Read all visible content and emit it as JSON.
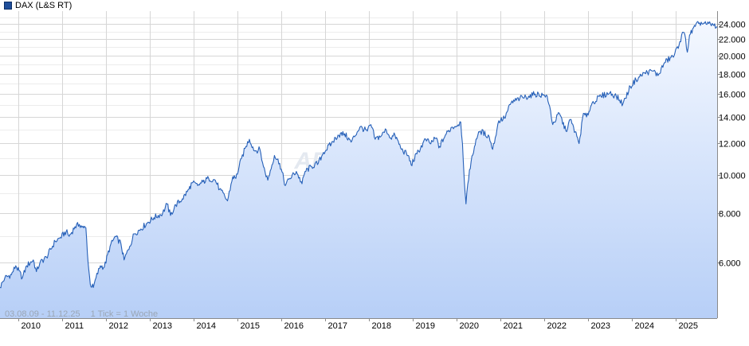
{
  "legend": {
    "label": "DAX (L&S RT)",
    "color": "#1f4e9a"
  },
  "footnote": {
    "range": "03.08.09 - 11.12.25",
    "tick": "1 Tick = 1 Woche"
  },
  "watermark": "ARIVA.DE",
  "chart_data": {
    "type": "area",
    "title": "",
    "xlabel": "",
    "ylabel": "",
    "yscale": "log",
    "grid": true,
    "legend_position": "top-left",
    "y_axis_side": "right",
    "xlim": [
      2009.59,
      2025.95
    ],
    "ylim": [
      4350,
      25900
    ],
    "line_color": "#2660b8",
    "fill_top": "#f4f8ff",
    "fill_bottom": "#b7cff7",
    "x_ticks": [
      {
        "label": "2010",
        "x": 2010.0
      },
      {
        "label": "2011",
        "x": 2011.0
      },
      {
        "label": "2012",
        "x": 2012.0
      },
      {
        "label": "2013",
        "x": 2013.0
      },
      {
        "label": "2014",
        "x": 2014.0
      },
      {
        "label": "2015",
        "x": 2015.0
      },
      {
        "label": "2016",
        "x": 2016.0
      },
      {
        "label": "2017",
        "x": 2017.0
      },
      {
        "label": "2018",
        "x": 2018.0
      },
      {
        "label": "2019",
        "x": 2019.0
      },
      {
        "label": "2020",
        "x": 2020.0
      },
      {
        "label": "2021",
        "x": 2021.0
      },
      {
        "label": "2022",
        "x": 2022.0
      },
      {
        "label": "2023",
        "x": 2023.0
      },
      {
        "label": "2024",
        "x": 2024.0
      },
      {
        "label": "2025",
        "x": 2025.0
      }
    ],
    "y_ticks": [
      {
        "label": "6.000",
        "value": 6000
      },
      {
        "label": "8.000",
        "value": 8000
      },
      {
        "label": "10.000",
        "value": 10000
      },
      {
        "label": "12.000",
        "value": 12000
      },
      {
        "label": "14.000",
        "value": 14000
      },
      {
        "label": "16.000",
        "value": 16000
      },
      {
        "label": "18.000",
        "value": 18000
      },
      {
        "label": "20.000",
        "value": 20000
      },
      {
        "label": "22.000",
        "value": 22000
      },
      {
        "label": "24.000",
        "value": 24000
      }
    ],
    "series": [
      {
        "name": "DAX (L&S RT)",
        "points": [
          [
            2009.59,
            5200
          ],
          [
            2009.7,
            5500
          ],
          [
            2009.85,
            5600
          ],
          [
            2009.95,
            5900
          ],
          [
            2010.1,
            5500
          ],
          [
            2010.2,
            5900
          ],
          [
            2010.35,
            6100
          ],
          [
            2010.42,
            5700
          ],
          [
            2010.5,
            6000
          ],
          [
            2010.65,
            6200
          ],
          [
            2010.85,
            6800
          ],
          [
            2010.97,
            6950
          ],
          [
            2011.1,
            7200
          ],
          [
            2011.17,
            7000
          ],
          [
            2011.3,
            7400
          ],
          [
            2011.4,
            7500
          ],
          [
            2011.5,
            7350
          ],
          [
            2011.55,
            7350
          ],
          [
            2011.6,
            6000
          ],
          [
            2011.65,
            5300
          ],
          [
            2011.72,
            5200
          ],
          [
            2011.78,
            5500
          ],
          [
            2011.88,
            5900
          ],
          [
            2011.97,
            5850
          ],
          [
            2012.1,
            6600
          ],
          [
            2012.22,
            7000
          ],
          [
            2012.35,
            6700
          ],
          [
            2012.42,
            6100
          ],
          [
            2012.55,
            6600
          ],
          [
            2012.65,
            7100
          ],
          [
            2012.8,
            7300
          ],
          [
            2012.97,
            7600
          ],
          [
            2013.1,
            7800
          ],
          [
            2013.3,
            8000
          ],
          [
            2013.4,
            8450
          ],
          [
            2013.48,
            7900
          ],
          [
            2013.6,
            8400
          ],
          [
            2013.75,
            8700
          ],
          [
            2013.9,
            9200
          ],
          [
            2013.97,
            9550
          ],
          [
            2014.1,
            9400
          ],
          [
            2014.22,
            9600
          ],
          [
            2014.35,
            9800
          ],
          [
            2014.5,
            9700
          ],
          [
            2014.6,
            9200
          ],
          [
            2014.78,
            8600
          ],
          [
            2014.9,
            9900
          ],
          [
            2014.97,
            9800
          ],
          [
            2015.1,
            11000
          ],
          [
            2015.2,
            11800
          ],
          [
            2015.28,
            12300
          ],
          [
            2015.4,
            11500
          ],
          [
            2015.52,
            11600
          ],
          [
            2015.6,
            10500
          ],
          [
            2015.7,
            9700
          ],
          [
            2015.85,
            11200
          ],
          [
            2015.97,
            10700
          ],
          [
            2016.1,
            9400
          ],
          [
            2016.2,
            9800
          ],
          [
            2016.35,
            10200
          ],
          [
            2016.48,
            9500
          ],
          [
            2016.55,
            10200
          ],
          [
            2016.7,
            10500
          ],
          [
            2016.85,
            10700
          ],
          [
            2016.97,
            11400
          ],
          [
            2017.15,
            12000
          ],
          [
            2017.3,
            12600
          ],
          [
            2017.45,
            12700
          ],
          [
            2017.6,
            12100
          ],
          [
            2017.8,
            13200
          ],
          [
            2017.97,
            12900
          ],
          [
            2018.05,
            13400
          ],
          [
            2018.15,
            12300
          ],
          [
            2018.3,
            12600
          ],
          [
            2018.4,
            13000
          ],
          [
            2018.5,
            12400
          ],
          [
            2018.6,
            12600
          ],
          [
            2018.75,
            11600
          ],
          [
            2018.9,
            11200
          ],
          [
            2018.97,
            10600
          ],
          [
            2019.1,
            11300
          ],
          [
            2019.3,
            12300
          ],
          [
            2019.4,
            12000
          ],
          [
            2019.55,
            12400
          ],
          [
            2019.6,
            11700
          ],
          [
            2019.75,
            12600
          ],
          [
            2019.9,
            13200
          ],
          [
            2019.97,
            13250
          ],
          [
            2020.1,
            13600
          ],
          [
            2020.14,
            12000
          ],
          [
            2020.2,
            9000
          ],
          [
            2020.22,
            8450
          ],
          [
            2020.3,
            10300
          ],
          [
            2020.45,
            12300
          ],
          [
            2020.55,
            12900
          ],
          [
            2020.75,
            12500
          ],
          [
            2020.83,
            11600
          ],
          [
            2020.97,
            13700
          ],
          [
            2021.1,
            13900
          ],
          [
            2021.25,
            15200
          ],
          [
            2021.45,
            15600
          ],
          [
            2021.65,
            15800
          ],
          [
            2021.8,
            16000
          ],
          [
            2021.97,
            15900
          ],
          [
            2022.05,
            15900
          ],
          [
            2022.15,
            14500
          ],
          [
            2022.2,
            13400
          ],
          [
            2022.35,
            14300
          ],
          [
            2022.5,
            12900
          ],
          [
            2022.6,
            13800
          ],
          [
            2022.75,
            12500
          ],
          [
            2022.8,
            12000
          ],
          [
            2022.9,
            14300
          ],
          [
            2022.97,
            14000
          ],
          [
            2023.1,
            15200
          ],
          [
            2023.3,
            15800
          ],
          [
            2023.5,
            16100
          ],
          [
            2023.65,
            15800
          ],
          [
            2023.8,
            15100
          ],
          [
            2023.97,
            16700
          ],
          [
            2024.1,
            17400
          ],
          [
            2024.3,
            18100
          ],
          [
            2024.5,
            18300
          ],
          [
            2024.6,
            17800
          ],
          [
            2024.75,
            19200
          ],
          [
            2024.9,
            19800
          ],
          [
            2024.97,
            20000
          ],
          [
            2025.1,
            21700
          ],
          [
            2025.18,
            22900
          ],
          [
            2025.23,
            22100
          ],
          [
            2025.27,
            20400
          ],
          [
            2025.32,
            22500
          ],
          [
            2025.45,
            23700
          ],
          [
            2025.55,
            24200
          ],
          [
            2025.7,
            24000
          ],
          [
            2025.8,
            24000
          ],
          [
            2025.95,
            23700
          ]
        ]
      }
    ]
  }
}
